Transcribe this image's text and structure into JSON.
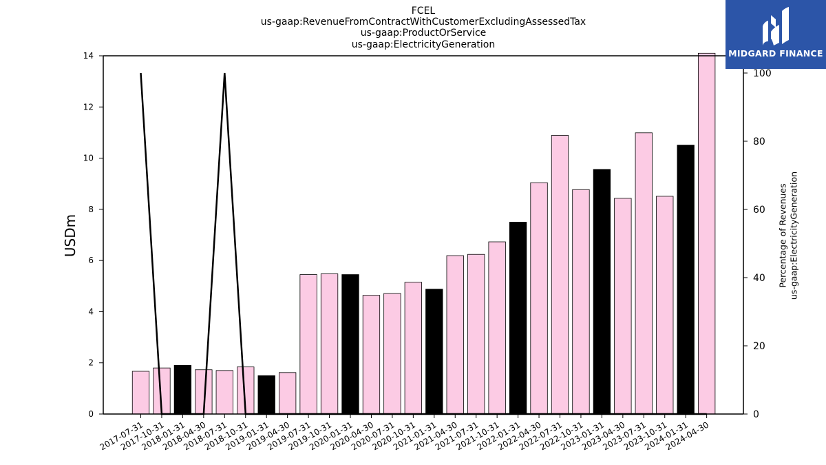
{
  "titles": {
    "line1": "FCEL",
    "line2": "us-gaap:RevenueFromContractWithCustomerExcludingAssessedTax",
    "line3": "us-gaap:ProductOrService",
    "line4": "us-gaap:ElectricityGeneration"
  },
  "logo": {
    "text": "MIDGARD FINANCE"
  },
  "colors": {
    "quarter_bar": "#fccbe4",
    "annual_bar": "#000000",
    "line": "#000000"
  },
  "chart_data": {
    "type": "bar",
    "ylabel": "USDm",
    "y2label_line1": "Percentage of Revenues",
    "y2label_line2": "us-gaap:ElectricityGeneration",
    "ylim": [
      0,
      14
    ],
    "y2lim": [
      0,
      100
    ],
    "yticks": [
      0,
      2,
      4,
      6,
      8,
      10,
      12,
      14
    ],
    "y2ticks": [
      0,
      20,
      40,
      60,
      80,
      100
    ],
    "categories": [
      "2017-07-31",
      "2017-10-31",
      "2018-01-31",
      "2018-04-30",
      "2018-07-31",
      "2018-10-31",
      "2019-01-31",
      "2019-04-30",
      "2019-07-31",
      "2019-10-31",
      "2020-01-31",
      "2020-04-30",
      "2020-07-31",
      "2020-10-31",
      "2021-01-31",
      "2021-04-30",
      "2021-07-31",
      "2021-10-31",
      "2022-01-31",
      "2022-04-30",
      "2022-07-31",
      "2022-10-31",
      "2023-01-31",
      "2023-04-30",
      "2023-07-31",
      "2023-10-31",
      "2024-01-31",
      "2024-04-30"
    ],
    "values": [
      1.67,
      1.8,
      1.9,
      1.73,
      1.7,
      1.84,
      1.5,
      1.62,
      5.45,
      5.48,
      5.45,
      4.64,
      4.71,
      5.15,
      4.88,
      6.19,
      6.24,
      6.73,
      7.5,
      9.04,
      10.89,
      8.77,
      9.56,
      8.43,
      10.99,
      8.51,
      10.51,
      14.1
    ],
    "annual": [
      false,
      false,
      true,
      false,
      false,
      false,
      true,
      false,
      false,
      false,
      true,
      false,
      false,
      false,
      true,
      false,
      false,
      false,
      true,
      false,
      false,
      false,
      true,
      false,
      false,
      false,
      true,
      false
    ],
    "percentage_line": [
      100,
      0,
      0,
      0,
      100,
      0,
      0,
      0,
      0,
      0,
      0,
      0,
      0,
      0,
      0,
      0,
      0,
      0,
      0,
      0,
      0,
      0,
      0,
      0,
      0,
      0,
      0,
      0
    ],
    "grid": false
  }
}
